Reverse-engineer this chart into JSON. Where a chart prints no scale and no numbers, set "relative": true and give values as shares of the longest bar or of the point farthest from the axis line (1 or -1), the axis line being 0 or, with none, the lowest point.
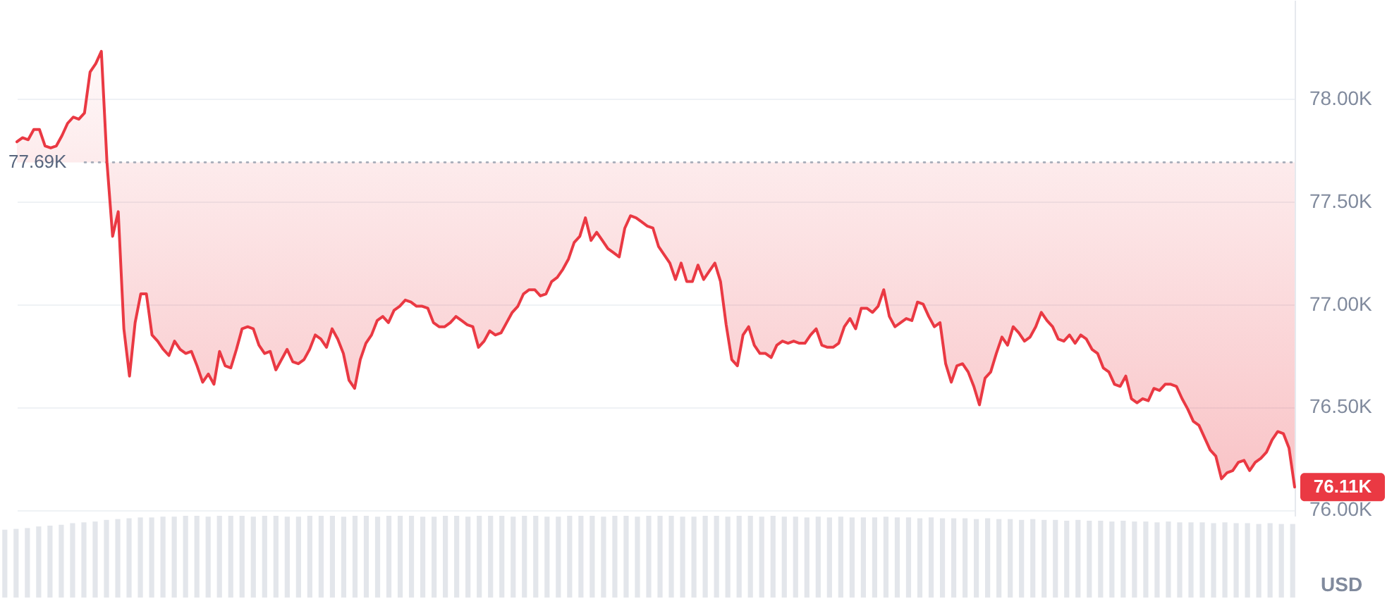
{
  "chart_data": [
    {
      "type": "line",
      "categories": [
        null,
        null,
        null,
        null,
        null,
        null,
        null,
        null,
        null,
        null,
        null,
        null,
        null,
        null,
        null,
        null,
        null,
        null,
        null,
        null,
        null,
        null,
        null,
        null,
        null,
        null,
        null,
        null,
        null,
        null,
        null,
        null,
        null,
        null,
        null,
        null,
        null,
        null,
        null,
        null,
        null,
        null,
        null,
        null,
        null,
        null,
        null,
        null,
        null,
        null,
        null,
        null,
        null,
        null,
        null,
        null,
        null,
        null,
        null,
        null,
        null,
        null,
        null,
        null,
        null,
        null,
        null,
        null,
        null,
        null,
        null,
        null,
        null,
        null,
        null,
        null,
        null,
        null,
        null,
        null,
        null,
        null,
        null,
        null,
        null,
        null,
        null,
        null,
        null,
        null,
        null,
        null,
        null,
        null,
        null,
        null,
        null,
        null,
        null,
        null,
        null,
        null,
        null,
        null,
        null,
        null,
        null,
        null,
        null,
        null,
        null,
        null,
        null,
        null,
        null,
        null,
        null,
        null,
        null,
        null,
        null,
        null,
        null,
        null,
        null,
        null,
        null,
        null,
        null,
        null,
        null,
        null,
        null,
        null,
        null,
        null,
        null,
        null,
        null,
        null,
        null,
        null,
        null,
        null,
        null,
        null,
        null,
        null,
        null,
        null,
        null,
        null,
        null,
        null,
        null,
        null,
        null,
        null,
        null,
        null,
        null,
        null,
        null,
        null,
        null,
        null,
        null,
        null,
        null,
        null,
        null,
        null,
        null,
        null,
        null,
        null,
        null,
        null,
        null,
        null,
        null,
        null,
        null,
        null,
        null,
        null,
        null,
        null,
        null,
        null,
        null,
        null,
        null,
        null,
        null,
        null,
        null,
        null,
        null,
        null,
        null,
        null,
        null,
        null,
        null,
        null,
        null,
        null,
        null,
        null,
        null,
        null,
        null,
        null,
        null,
        null,
        null,
        null,
        null,
        null,
        null,
        null,
        null,
        null,
        null,
        null,
        null,
        null
      ],
      "series": [
        {
          "color": "#ea3943",
          "values": [
            77.79,
            77.81,
            77.8,
            77.85,
            77.85,
            77.77,
            77.76,
            77.77,
            77.82,
            77.88,
            77.91,
            77.9,
            77.93,
            78.13,
            78.17,
            78.23,
            77.69,
            77.33,
            77.45,
            76.88,
            76.65,
            76.91,
            77.05,
            77.05,
            76.85,
            76.82,
            76.78,
            76.75,
            76.82,
            76.78,
            76.76,
            76.77,
            76.7,
            76.62,
            76.66,
            76.61,
            76.77,
            76.7,
            76.69,
            76.78,
            76.88,
            76.89,
            76.88,
            76.8,
            76.76,
            76.77,
            76.68,
            76.73,
            76.78,
            76.72,
            76.71,
            76.73,
            76.78,
            76.85,
            76.83,
            76.79,
            76.88,
            76.83,
            76.76,
            76.63,
            76.59,
            76.73,
            76.81,
            76.85,
            76.92,
            76.94,
            76.91,
            76.97,
            76.99,
            77.02,
            77.01,
            76.99,
            76.99,
            76.98,
            76.91,
            76.89,
            76.89,
            76.91,
            76.94,
            76.92,
            76.9,
            76.89,
            76.79,
            76.82,
            76.87,
            76.85,
            76.86,
            76.91,
            76.96,
            76.99,
            77.05,
            77.07,
            77.07,
            77.04,
            77.05,
            77.11,
            77.13,
            77.17,
            77.22,
            77.3,
            77.33,
            77.42,
            77.31,
            77.35,
            77.31,
            77.27,
            77.25,
            77.23,
            77.37,
            77.43,
            77.42,
            77.4,
            77.38,
            77.37,
            77.28,
            77.24,
            77.2,
            77.12,
            77.2,
            77.11,
            77.11,
            77.19,
            77.12,
            77.16,
            77.2,
            77.11,
            76.9,
            76.73,
            76.7,
            76.85,
            76.89,
            76.8,
            76.76,
            76.76,
            76.74,
            76.8,
            76.82,
            76.81,
            76.82,
            76.81,
            76.81,
            76.85,
            76.88,
            76.8,
            76.79,
            76.79,
            76.81,
            76.89,
            76.93,
            76.88,
            76.98,
            76.98,
            76.96,
            76.99,
            77.07,
            76.94,
            76.89,
            76.91,
            76.93,
            76.92,
            77.01,
            77.0,
            76.94,
            76.89,
            76.91,
            76.71,
            76.62,
            76.7,
            76.71,
            76.67,
            76.6,
            76.51,
            76.64,
            76.67,
            76.76,
            76.84,
            76.8,
            76.89,
            76.86,
            76.82,
            76.84,
            76.89,
            76.96,
            76.92,
            76.89,
            76.83,
            76.82,
            76.85,
            76.81,
            76.85,
            76.83,
            76.78,
            76.76,
            76.69,
            76.67,
            76.61,
            76.6,
            76.65,
            76.54,
            76.52,
            76.54,
            76.53,
            76.59,
            76.58,
            76.61,
            76.61,
            76.6,
            76.54,
            76.49,
            76.43,
            76.41,
            76.35,
            76.29,
            76.26,
            76.15,
            76.18,
            76.19,
            76.23,
            76.24,
            76.19,
            76.23,
            76.25,
            76.28,
            76.34,
            76.38,
            76.37,
            76.3,
            76.11
          ],
          "lower": [
            77.69,
            77.69,
            77.69,
            77.69,
            77.69,
            77.69,
            77.69,
            77.69,
            77.69,
            77.69,
            77.69,
            77.69,
            77.69,
            77.69,
            77.69,
            77.69,
            77.69,
            77.33,
            77.45,
            76.88,
            76.65,
            76.91,
            77.05,
            77.05,
            76.85,
            76.82,
            76.78,
            76.75,
            76.82,
            76.78,
            76.76,
            76.77,
            76.7,
            76.62,
            76.66,
            76.61,
            76.77,
            76.7,
            76.69,
            76.78,
            76.88,
            76.89,
            76.88,
            76.8,
            76.76,
            76.77,
            76.68,
            76.73,
            76.78,
            76.72,
            76.71,
            76.73,
            76.78,
            76.85,
            76.83,
            76.79,
            76.88,
            76.83,
            76.76,
            76.63,
            76.59,
            76.73,
            76.81,
            76.85,
            76.92,
            76.94,
            76.91,
            76.97,
            76.99,
            77.02,
            77.01,
            76.99,
            76.99,
            76.98,
            76.91,
            76.89,
            76.89,
            76.91,
            76.94,
            76.92,
            76.9,
            76.89,
            76.79,
            76.82,
            76.87,
            76.85,
            76.86,
            76.91,
            76.96,
            76.99,
            77.05,
            77.07,
            77.07,
            77.04,
            77.05,
            77.11,
            77.13,
            77.17,
            77.22,
            77.3,
            77.33,
            77.42,
            77.31,
            77.35,
            77.31,
            77.27,
            77.25,
            77.23,
            77.37,
            77.43,
            77.42,
            77.4,
            77.38,
            77.37,
            77.28,
            77.24,
            77.2,
            77.12,
            77.2,
            77.11,
            77.11,
            77.19,
            77.12,
            77.16,
            77.2,
            77.11,
            76.9,
            76.73,
            76.7,
            76.85,
            76.89,
            76.8,
            76.76,
            76.76,
            76.74,
            76.8,
            76.82,
            76.81,
            76.82,
            76.81,
            76.81,
            76.85,
            76.88,
            76.8,
            76.79,
            76.79,
            76.81,
            76.89,
            76.93,
            76.88,
            76.98,
            76.98,
            76.96,
            76.99,
            77.07,
            76.94,
            76.89,
            76.91,
            76.93,
            76.92,
            77.01,
            77.0,
            76.94,
            76.89,
            76.91,
            76.71,
            76.62,
            76.7,
            76.71,
            76.67,
            76.6,
            76.51,
            76.64,
            76.67,
            76.76,
            76.84,
            76.8,
            76.89,
            76.86,
            76.82,
            76.84,
            76.89,
            76.96,
            76.92,
            76.89,
            76.83,
            76.82,
            76.85,
            76.81,
            76.85,
            76.83,
            76.78,
            76.76,
            76.69,
            76.67,
            76.61,
            76.6,
            76.65,
            76.54,
            76.52,
            76.54,
            76.53,
            76.59,
            76.58,
            76.61,
            76.61,
            76.6,
            76.54,
            76.49,
            76.43,
            76.41,
            76.35,
            76.29,
            76.26,
            76.15,
            76.18,
            76.19,
            76.23,
            76.24,
            76.19,
            76.23,
            76.25,
            76.28,
            76.34,
            76.38,
            76.37,
            76.3,
            76.11
          ],
          "upper": [
            77.79,
            77.81,
            77.8,
            77.85,
            77.85,
            77.77,
            77.76,
            77.77,
            77.82,
            77.88,
            77.91,
            77.9,
            77.93,
            78.13,
            78.17,
            78.23,
            77.69,
            77.69,
            77.69,
            77.69,
            77.69,
            77.69,
            77.69,
            77.69,
            77.69,
            77.69,
            77.69,
            77.69,
            77.69,
            77.69,
            77.69,
            77.69,
            77.69,
            77.69,
            77.69,
            77.69,
            77.69,
            77.69,
            77.69,
            77.69,
            77.69,
            77.69,
            77.69,
            77.69,
            77.69,
            77.69,
            77.69,
            77.69,
            77.69,
            77.69,
            77.69,
            77.69,
            77.69,
            77.69,
            77.69,
            77.69,
            77.69,
            77.69,
            77.69,
            77.69,
            77.69,
            77.69,
            77.69,
            77.69,
            77.69,
            77.69,
            77.69,
            77.69,
            77.69,
            77.69,
            77.69,
            77.69,
            77.69,
            77.69,
            77.69,
            77.69,
            77.69,
            77.69,
            77.69,
            77.69,
            77.69,
            77.69,
            77.69,
            77.69,
            77.69,
            77.69,
            77.69,
            77.69,
            77.69,
            77.69,
            77.69,
            77.69,
            77.69,
            77.69,
            77.69,
            77.69,
            77.69,
            77.69,
            77.69,
            77.69,
            77.69,
            77.69,
            77.69,
            77.69,
            77.69,
            77.69,
            77.69,
            77.69,
            77.69,
            77.69,
            77.69,
            77.69,
            77.69,
            77.69,
            77.69,
            77.69,
            77.69,
            77.69,
            77.69,
            77.69,
            77.69,
            77.69,
            77.69,
            77.69,
            77.69,
            77.69,
            77.69,
            77.69,
            77.69,
            77.69,
            77.69,
            77.69,
            77.69,
            77.69,
            77.69,
            77.69,
            77.69,
            77.69,
            77.69,
            77.69,
            77.69,
            77.69,
            77.69,
            77.69,
            77.69,
            77.69,
            77.69,
            77.69,
            77.69,
            77.69,
            77.69,
            77.69,
            77.69,
            77.69,
            77.69,
            77.69,
            77.69,
            77.69,
            77.69,
            77.69,
            77.69,
            77.69,
            77.69,
            77.69,
            77.69,
            77.69,
            77.69,
            77.69,
            77.69,
            77.69,
            77.69,
            77.69,
            77.69,
            77.69,
            77.69,
            77.69,
            77.69,
            77.69,
            77.69,
            77.69,
            77.69,
            77.69,
            77.69,
            77.69,
            77.69,
            77.69,
            77.69,
            77.69,
            77.69,
            77.69,
            77.69,
            77.69,
            77.69,
            77.69,
            77.69,
            77.69,
            77.69,
            77.69,
            77.69,
            77.69,
            77.69,
            77.69,
            77.69,
            77.69,
            77.69,
            77.69,
            77.69,
            77.69,
            77.69,
            77.69,
            77.69,
            77.69,
            77.69,
            77.69,
            77.69,
            77.69,
            77.69,
            77.69,
            77.69,
            77.69,
            77.69,
            77.69,
            77.69,
            77.69,
            77.69,
            77.69,
            77.69,
            77.69
          ]
        }
      ],
      "ylim": [
        75.97,
        78.48
      ],
      "yticks": [
        {
          "value": 76,
          "label": "76.00K"
        },
        {
          "value": 76.5,
          "label": "76.50K"
        },
        {
          "value": 77,
          "label": "77.00K"
        },
        {
          "value": 77.5,
          "label": "77.50K"
        },
        {
          "value": 78,
          "label": "78.00K"
        }
      ],
      "ylabel": "USD",
      "grid": "y",
      "tick_labels": "y",
      "ref_lines": [
        {
          "axis": "y",
          "value": 77.69,
          "label": "77.69K",
          "line_style": "dotted",
          "color": "#a6acb9"
        }
      ],
      "annotations": [
        "76.11K"
      ]
    },
    {
      "type": "bar",
      "relative": true,
      "tick_labels": false,
      "color": "#e3e6eb",
      "categories": [
        null,
        null,
        null,
        null,
        null,
        null,
        null,
        null,
        null,
        null,
        null,
        null,
        null,
        null,
        null,
        null,
        null,
        null,
        null,
        null,
        null,
        null,
        null,
        null,
        null,
        null,
        null,
        null,
        null,
        null,
        null,
        null,
        null,
        null,
        null,
        null,
        null,
        null,
        null,
        null,
        null,
        null,
        null,
        null,
        null,
        null,
        null,
        null,
        null,
        null,
        null,
        null,
        null,
        null,
        null,
        null,
        null,
        null,
        null,
        null,
        null,
        null,
        null,
        null,
        null,
        null,
        null,
        null,
        null,
        null,
        null,
        null,
        null,
        null,
        null,
        null,
        null,
        null,
        null,
        null,
        null,
        null,
        null,
        null,
        null,
        null,
        null,
        null,
        null,
        null,
        null,
        null,
        null,
        null,
        null,
        null,
        null,
        null,
        null,
        null,
        null,
        null,
        null,
        null,
        null,
        null,
        null,
        null,
        null,
        null,
        null,
        null,
        null,
        null,
        null
      ],
      "values": [
        0.83,
        0.84,
        0.85,
        0.87,
        0.88,
        0.89,
        0.91,
        0.92,
        0.93,
        0.95,
        0.96,
        0.97,
        0.98,
        0.98,
        0.99,
        0.99,
        1,
        1,
        0.99,
        1,
        1,
        1,
        0.99,
        1,
        1,
        0.99,
        0.99,
        1,
        1,
        1,
        0.99,
        1,
        1,
        0.99,
        1,
        1,
        1,
        0.99,
        0.99,
        1,
        1,
        0.99,
        1,
        1,
        1,
        0.99,
        1,
        1,
        0.99,
        0.99,
        1,
        1,
        1,
        0.99,
        1,
        1,
        0.99,
        1,
        1,
        1,
        0.99,
        0.99,
        1,
        1,
        0.99,
        1,
        1,
        0.99,
        1,
        0.99,
        0.99,
        0.98,
        0.99,
        0.98,
        0.99,
        0.98,
        0.98,
        0.98,
        0.99,
        0.98,
        0.98,
        0.97,
        0.98,
        0.97,
        0.97,
        0.97,
        0.96,
        0.97,
        0.96,
        0.96,
        0.95,
        0.96,
        0.95,
        0.95,
        0.94,
        0.95,
        0.94,
        0.94,
        0.93,
        0.94,
        0.93,
        0.93,
        0.92,
        0.93,
        0.92,
        0.92,
        0.92,
        0.91,
        0.92,
        0.91,
        0.91,
        0.9,
        0.91,
        0.9,
        0.9
      ]
    }
  ]
}
